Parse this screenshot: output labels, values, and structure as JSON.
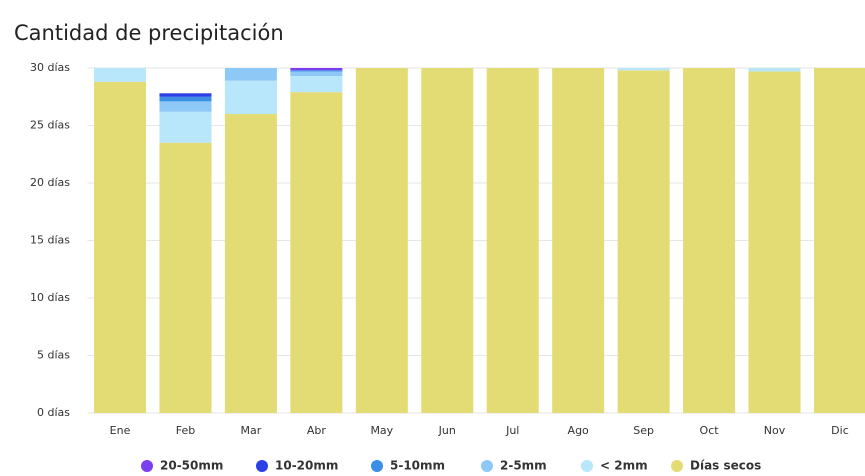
{
  "chart_data": {
    "type": "stacked_bar",
    "title": "Cantidad de precipitación",
    "categories": [
      "Ene",
      "Feb",
      "Mar",
      "Abr",
      "May",
      "Jun",
      "Jul",
      "Ago",
      "Sep",
      "Oct",
      "Nov",
      "Dic"
    ],
    "series": [
      {
        "name": "20-50mm",
        "color": "#7b3ff2",
        "values": [
          0,
          0,
          0,
          0.2,
          0,
          0,
          0,
          0,
          0,
          0,
          0,
          0
        ]
      },
      {
        "name": "10-20mm",
        "color": "#2b3fe6",
        "values": [
          0,
          0.3,
          0,
          0,
          0,
          0,
          0,
          0,
          0,
          0,
          0,
          0
        ]
      },
      {
        "name": "5-10mm",
        "color": "#3a8ee6",
        "values": [
          0,
          0.4,
          0,
          0.1,
          0,
          0,
          0,
          0,
          0,
          0,
          0,
          0
        ]
      },
      {
        "name": "2-5mm",
        "color": "#8ec8f6",
        "values": [
          0,
          0.9,
          1.1,
          0.4,
          0,
          0,
          0,
          0,
          0,
          0,
          0,
          0
        ]
      },
      {
        "name": "< 2mm",
        "color": "#b8e6fa",
        "values": [
          1.2,
          2.7,
          2.9,
          1.4,
          0,
          0,
          0,
          0,
          0.2,
          0,
          0.3,
          0
        ]
      },
      {
        "name": "Días secos",
        "color": "#e3db74",
        "values": [
          28.8,
          23.5,
          26.0,
          27.9,
          30,
          30,
          30,
          30,
          29.8,
          30,
          29.7,
          30
        ]
      }
    ],
    "ylim": [
      0,
      30
    ],
    "yticks": [
      {
        "value": 0,
        "label": "0 días"
      },
      {
        "value": 5,
        "label": "5 días"
      },
      {
        "value": 10,
        "label": "10 días"
      },
      {
        "value": 15,
        "label": "15 días"
      },
      {
        "value": 20,
        "label": "20 días"
      },
      {
        "value": 25,
        "label": "25 días"
      },
      {
        "value": 30,
        "label": "30 días"
      }
    ],
    "grid": true
  }
}
